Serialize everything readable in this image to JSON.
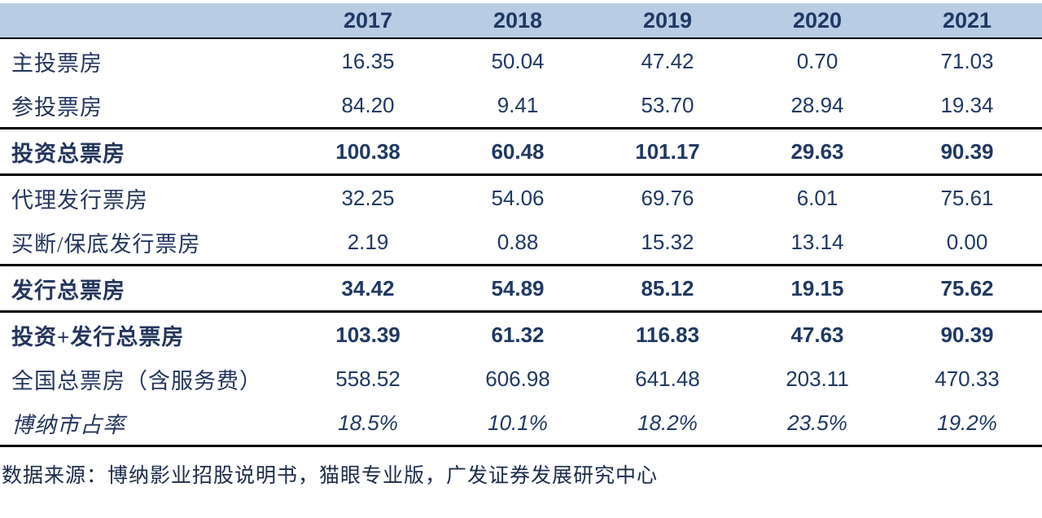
{
  "table": {
    "columns": [
      "",
      "2017",
      "2018",
      "2019",
      "2020",
      "2021"
    ],
    "rows": [
      {
        "label": "主投票房",
        "values": [
          "16.35",
          "50.04",
          "47.42",
          "0.70",
          "71.03"
        ]
      },
      {
        "label": "参投票房",
        "values": [
          "84.20",
          "9.41",
          "53.70",
          "28.94",
          "19.34"
        ]
      },
      {
        "label": "投资总票房",
        "values": [
          "100.38",
          "60.48",
          "101.17",
          "29.63",
          "90.39"
        ]
      },
      {
        "label": "代理发行票房",
        "values": [
          "32.25",
          "54.06",
          "69.76",
          "6.01",
          "75.61"
        ]
      },
      {
        "label": "买断/保底发行票房",
        "values": [
          "2.19",
          "0.88",
          "15.32",
          "13.14",
          "0.00"
        ]
      },
      {
        "label": "发行总票房",
        "values": [
          "34.42",
          "54.89",
          "85.12",
          "19.15",
          "75.62"
        ]
      },
      {
        "label": "投资+发行总票房",
        "values": [
          "103.39",
          "61.32",
          "116.83",
          "47.63",
          "90.39"
        ]
      },
      {
        "label": "全国总票房（含服务费）",
        "values": [
          "558.52",
          "606.98",
          "641.48",
          "203.11",
          "470.33"
        ]
      },
      {
        "label": "博纳市占率",
        "values": [
          "18.5%",
          "10.1%",
          "18.2%",
          "23.5%",
          "19.2%"
        ]
      }
    ]
  },
  "footer": {
    "source": "数据来源：博纳影业招股说明书，猫眼专业版，广发证券发展研究中心"
  },
  "colors": {
    "header_bg": "#b8cce4",
    "text_navy": "#1f3864",
    "line_black": "#000000"
  },
  "chart_data": {
    "type": "table",
    "categories": [
      "2017",
      "2018",
      "2019",
      "2020",
      "2021"
    ],
    "series": [
      {
        "name": "主投票房",
        "values": [
          16.35,
          50.04,
          47.42,
          0.7,
          71.03
        ]
      },
      {
        "name": "参投票房",
        "values": [
          84.2,
          9.41,
          53.7,
          28.94,
          19.34
        ]
      },
      {
        "name": "投资总票房",
        "values": [
          100.38,
          60.48,
          101.17,
          29.63,
          90.39
        ]
      },
      {
        "name": "代理发行票房",
        "values": [
          32.25,
          54.06,
          69.76,
          6.01,
          75.61
        ]
      },
      {
        "name": "买断/保底发行票房",
        "values": [
          2.19,
          0.88,
          15.32,
          13.14,
          0.0
        ]
      },
      {
        "name": "发行总票房",
        "values": [
          34.42,
          54.89,
          85.12,
          19.15,
          75.62
        ]
      },
      {
        "name": "投资+发行总票房",
        "values": [
          103.39,
          61.32,
          116.83,
          47.63,
          90.39
        ]
      },
      {
        "name": "全国总票房（含服务费）",
        "values": [
          558.52,
          606.98,
          641.48,
          203.11,
          470.33
        ]
      },
      {
        "name": "博纳市占率",
        "values": [
          "18.5%",
          "10.1%",
          "18.2%",
          "23.5%",
          "19.2%"
        ]
      }
    ],
    "title": "",
    "source_note": "数据来源：博纳影业招股说明书，猫眼专业版，广发证券发展研究中心",
    "legend_position": "none",
    "grid": "horizontal-rules-only"
  }
}
